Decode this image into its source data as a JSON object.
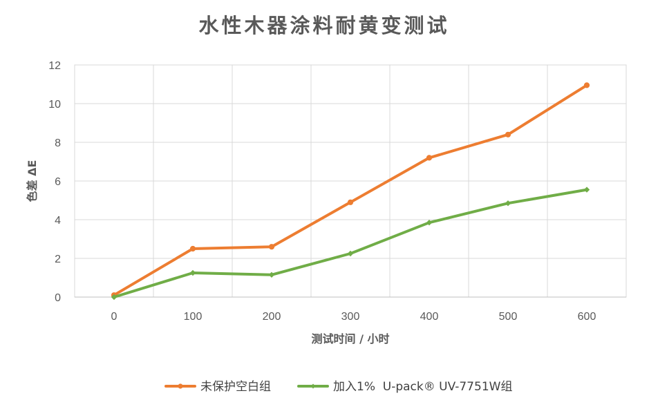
{
  "chart_data": {
    "type": "line",
    "title": "水性木器涂料耐黄变测试",
    "xlabel": "测试时间 / 小时",
    "ylabel": "色差 ΔE",
    "x": [
      0,
      100,
      200,
      300,
      400,
      500,
      600
    ],
    "xticks": [
      "0",
      "100",
      "200",
      "300",
      "400",
      "500",
      "600"
    ],
    "yticks": [
      "0",
      "2",
      "4",
      "6",
      "8",
      "10",
      "12"
    ],
    "ylim": [
      0,
      12
    ],
    "grid": true,
    "legend_position": "bottom",
    "series": [
      {
        "name": "未保护空白组",
        "color": "#ED7D31",
        "marker": "circle",
        "values": [
          0.1,
          2.5,
          2.6,
          4.9,
          7.2,
          8.4,
          10.95
        ]
      },
      {
        "name": "加入1%  U-pack® UV-7751W组",
        "color": "#70AD47",
        "marker": "diamond",
        "values": [
          0.0,
          1.25,
          1.15,
          2.25,
          3.85,
          4.85,
          5.55
        ]
      }
    ]
  }
}
